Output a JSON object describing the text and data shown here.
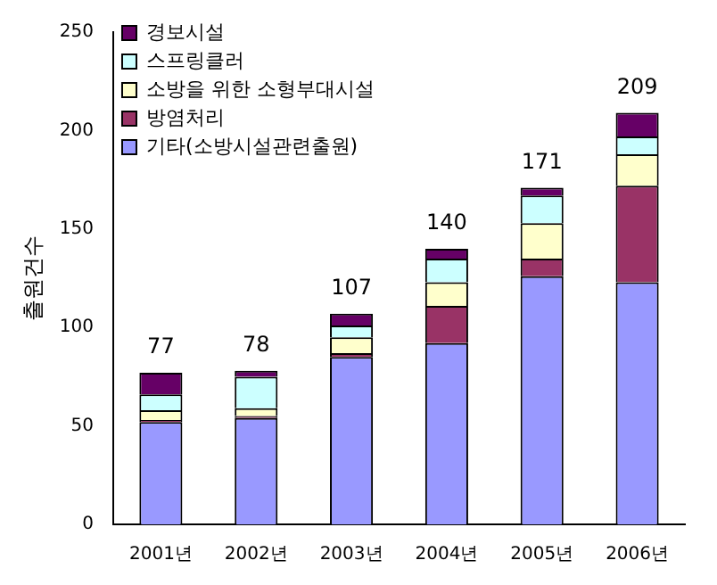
{
  "chart_data": {
    "type": "bar",
    "stacked": true,
    "ylabel": "출원건수",
    "categories": [
      "2001년",
      "2002년",
      "2003년",
      "2004년",
      "2005년",
      "2006년"
    ],
    "ylim": [
      0,
      250
    ],
    "yticks": [
      0,
      50,
      100,
      150,
      200,
      250
    ],
    "grid": false,
    "legend": "top left",
    "series": [
      {
        "name": "기타(소방시설관련출원)",
        "color": "#9999ff",
        "values": [
          52,
          54,
          85,
          92,
          126,
          123
        ]
      },
      {
        "name": "방염처리",
        "color": "#993366",
        "values": [
          1,
          1,
          2,
          19,
          9,
          49
        ]
      },
      {
        "name": "소방을 위한 소형부대시설",
        "color": "#ffffcc",
        "values": [
          5,
          4,
          8,
          12,
          18,
          16
        ]
      },
      {
        "name": "스프링클러",
        "color": "#ccffff",
        "values": [
          8,
          16,
          6,
          12,
          14,
          9
        ]
      },
      {
        "name": "경보시설",
        "color": "#660066",
        "values": [
          11,
          3,
          6,
          5,
          4,
          12
        ]
      }
    ],
    "totals": [
      "77",
      "78",
      "107",
      "140",
      "171",
      "209"
    ]
  }
}
